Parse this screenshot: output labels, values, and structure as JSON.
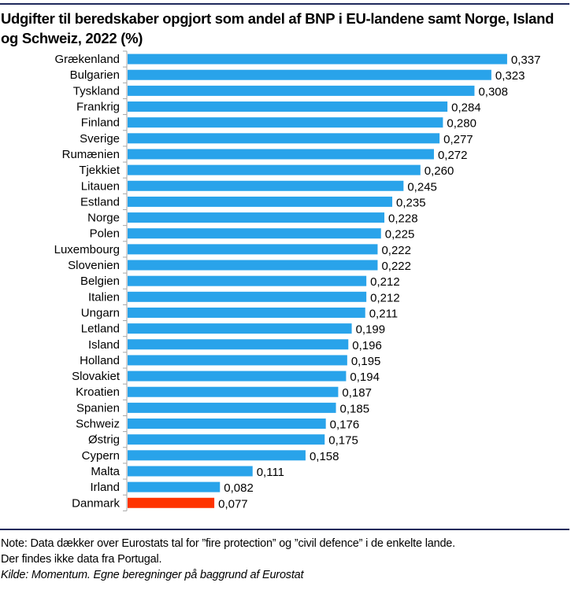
{
  "header": {
    "title": "Udgifter til beredskaber opgjort som andel af BNP i EU-landene samt Norge, Island og Schweiz, 2022 (%)"
  },
  "footer": {
    "note_line1": "Note: Data dækker over Eurostats tal for ”fire protection” og ”civil defence” i de enkelte lande.",
    "note_line2": "Der findes ikke data fra Portugal.",
    "source": "Kilde: Momentum. Egne beregninger på baggrund af Eurostat"
  },
  "colors": {
    "bar_default": "#29a3ea",
    "bar_highlight": "#ff3300",
    "rule": "#1f2a5c"
  },
  "chart_data": {
    "type": "bar",
    "orientation": "horizontal",
    "title": "Udgifter til beredskaber opgjort som andel af BNP i EU-landene samt Norge, Island og Schweiz, 2022 (%)",
    "xlabel": "",
    "ylabel": "",
    "xlim": [
      0,
      0.34
    ],
    "grid": false,
    "legend": "none",
    "decimal_separator": ",",
    "highlight": "Danmark",
    "categories": [
      "Grækenland",
      "Bulgarien",
      "Tyskland",
      "Frankrig",
      "Finland",
      "Sverige",
      "Rumænien",
      "Tjekkiet",
      "Litauen",
      "Estland",
      "Norge",
      "Polen",
      "Luxembourg",
      "Slovenien",
      "Belgien",
      "Italien",
      "Ungarn",
      "Letland",
      "Island",
      "Holland",
      "Slovakiet",
      "Kroatien",
      "Spanien",
      "Schweiz",
      "Østrig",
      "Cypern",
      "Malta",
      "Irland",
      "Danmark"
    ],
    "values": [
      0.337,
      0.323,
      0.308,
      0.284,
      0.28,
      0.277,
      0.272,
      0.26,
      0.245,
      0.235,
      0.228,
      0.225,
      0.222,
      0.222,
      0.212,
      0.212,
      0.211,
      0.199,
      0.196,
      0.195,
      0.194,
      0.187,
      0.185,
      0.176,
      0.175,
      0.158,
      0.111,
      0.082,
      0.077
    ],
    "data_labels": [
      "0,337",
      "0,323",
      "0,308",
      "0,284",
      "0,280",
      "0,277",
      "0,272",
      "0,260",
      "0,245",
      "0,235",
      "0,228",
      "0,225",
      "0,222",
      "0,222",
      "0,212",
      "0,212",
      "0,211",
      "0,199",
      "0,196",
      "0,195",
      "0,194",
      "0,187",
      "0,185",
      "0,176",
      "0,175",
      "0,158",
      "0,111",
      "0,082",
      "0,077"
    ]
  }
}
